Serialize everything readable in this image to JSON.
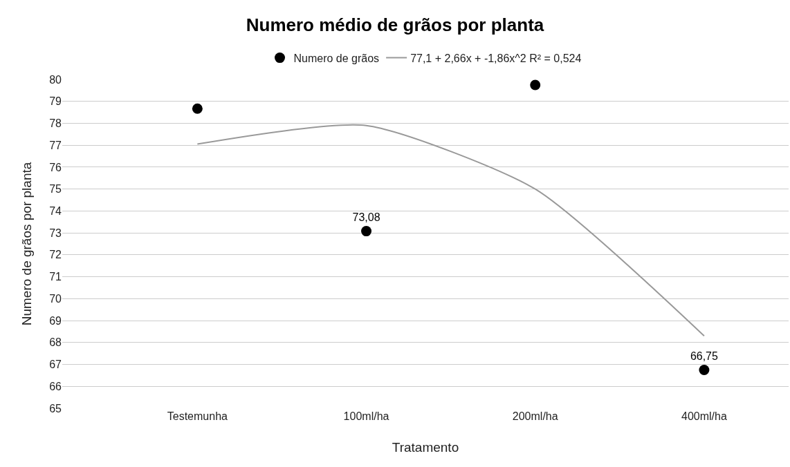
{
  "chart_data": {
    "type": "scatter",
    "title": "Numero médio de grãos por planta",
    "xlabel": "Tratamento",
    "ylabel": "Numero de grãos por planta",
    "categories": [
      "Testemunha",
      "100ml/ha",
      "200ml/ha",
      "400ml/ha"
    ],
    "series": [
      {
        "name": "Numero de grãos",
        "color": "#000000",
        "marker": "circle",
        "values": [
          78.67,
          73.08,
          79.75,
          66.75
        ],
        "value_labels": [
          null,
          "73,08",
          null,
          "66,75"
        ]
      },
      {
        "name": "77,1 + 2,66x + -1,86x^2 R² = 0,524",
        "type": "line",
        "color": "#999999",
        "line_style": "solid",
        "values": [
          77.05,
          77.9,
          75.0,
          68.3
        ]
      }
    ],
    "ylim": [
      65,
      80
    ],
    "yticks": [
      65,
      66,
      67,
      68,
      69,
      70,
      71,
      72,
      73,
      74,
      75,
      76,
      77,
      78,
      79,
      80
    ],
    "grid": "y",
    "legend": "top"
  }
}
